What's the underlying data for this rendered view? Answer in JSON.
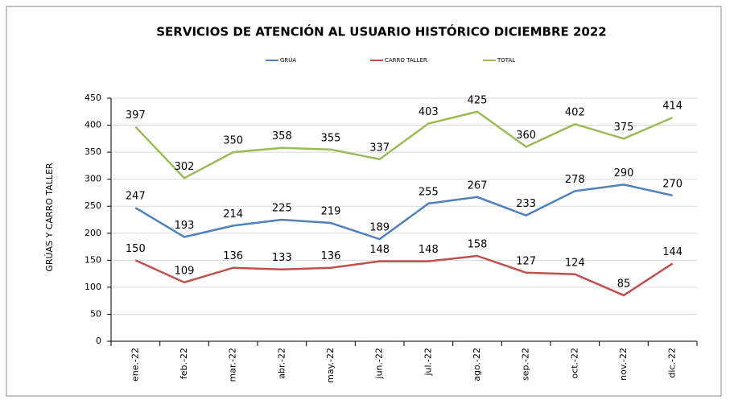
{
  "chart_data": {
    "type": "line",
    "title": "SERVICIOS DE ATENCIÓN AL USUARIO HISTÓRICO DICIEMBRE 2022",
    "y_label": "GRÚAS Y CARRO TALLER",
    "categories": [
      "ene.-22",
      "feb.-22",
      "mar.-22",
      "abr.-22",
      "may.-22",
      "jun.-22",
      "jul.-22",
      "ago.-22",
      "sep.-22",
      "oct.-22",
      "nov.-22",
      "dic.-22"
    ],
    "series": [
      {
        "name": "GRÚA",
        "color": "#4f81bd",
        "values": [
          247,
          193,
          214,
          225,
          219,
          189,
          255,
          267,
          233,
          278,
          290,
          270
        ]
      },
      {
        "name": "CARRO TALLER",
        "color": "#c0504d",
        "values": [
          150,
          109,
          136,
          133,
          136,
          148,
          148,
          158,
          127,
          124,
          85,
          144
        ]
      },
      {
        "name": "TOTAL",
        "color": "#9bbb59",
        "values": [
          397,
          302,
          350,
          358,
          355,
          337,
          403,
          425,
          360,
          402,
          375,
          414
        ]
      }
    ],
    "ylim": [
      0,
      450
    ],
    "yticks": [
      0,
      50,
      100,
      150,
      200,
      250,
      300,
      350,
      400,
      450
    ],
    "grid": true,
    "legend": "top"
  }
}
